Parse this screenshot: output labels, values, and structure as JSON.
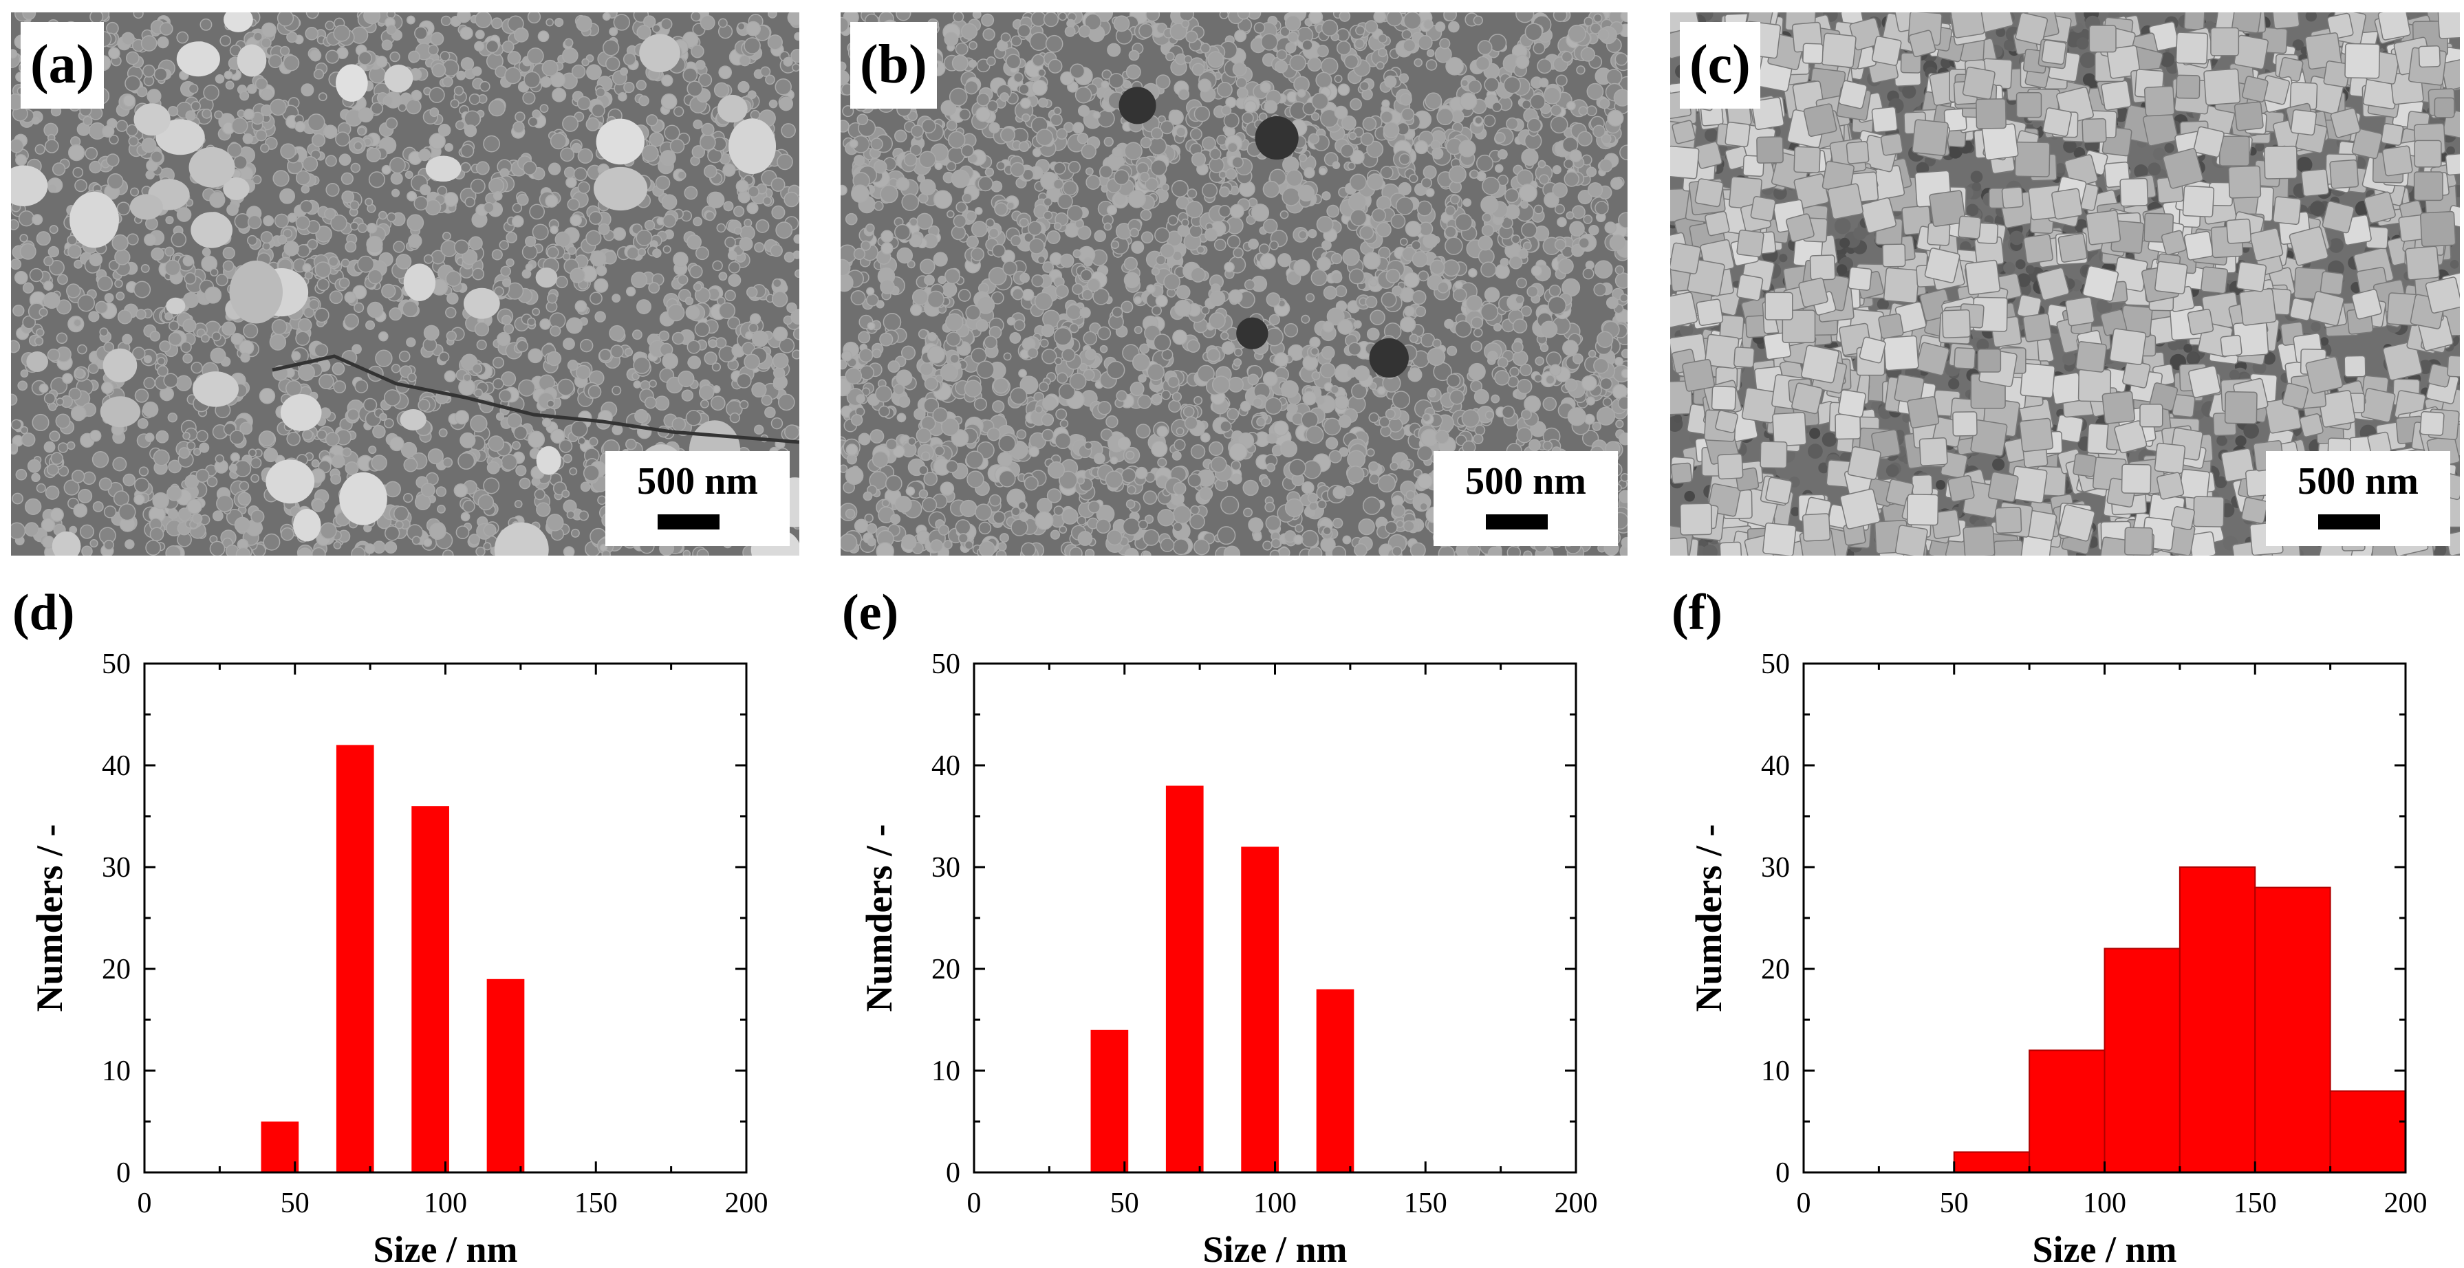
{
  "panels": [
    {
      "label": "(a)",
      "scale_text": "500 nm",
      "particle": "round"
    },
    {
      "label": "(b)",
      "scale_text": "500 nm",
      "particle": "round"
    },
    {
      "label": "(c)",
      "scale_text": "500 nm",
      "particle": "cube"
    }
  ],
  "colors": {
    "bar": "#ff0000",
    "bar_edge": "#b00000",
    "sem_background": "#6f6f6f"
  },
  "chart_data": [
    {
      "type": "bar",
      "label": "(d)",
      "title": "",
      "xlabel": "Size / nm",
      "ylabel": "Numders / -",
      "xlim": [
        0,
        200
      ],
      "ylim": [
        0,
        50
      ],
      "xticks": [
        0,
        50,
        100,
        150,
        200
      ],
      "yticks": [
        0,
        10,
        20,
        30,
        40,
        50
      ],
      "bars": [
        {
          "center": 45,
          "width": 12.5,
          "value": 5
        },
        {
          "center": 70,
          "width": 12.5,
          "value": 42
        },
        {
          "center": 95,
          "width": 12.5,
          "value": 36
        },
        {
          "center": 120,
          "width": 12.5,
          "value": 19
        }
      ]
    },
    {
      "type": "bar",
      "label": "(e)",
      "title": "",
      "xlabel": "Size / nm",
      "ylabel": "Numders / -",
      "xlim": [
        0,
        200
      ],
      "ylim": [
        0,
        50
      ],
      "xticks": [
        0,
        50,
        100,
        150,
        200
      ],
      "yticks": [
        0,
        10,
        20,
        30,
        40,
        50
      ],
      "bars": [
        {
          "center": 45,
          "width": 12.5,
          "value": 14
        },
        {
          "center": 70,
          "width": 12.5,
          "value": 38
        },
        {
          "center": 95,
          "width": 12.5,
          "value": 32
        },
        {
          "center": 120,
          "width": 12.5,
          "value": 18
        }
      ]
    },
    {
      "type": "bar",
      "label": "(f)",
      "title": "",
      "xlabel": "Size / nm",
      "ylabel": "Numders / -",
      "xlim": [
        0,
        200
      ],
      "ylim": [
        0,
        50
      ],
      "xticks": [
        0,
        50,
        100,
        150,
        200
      ],
      "yticks": [
        0,
        10,
        20,
        30,
        40,
        50
      ],
      "bars": [
        {
          "center": 62.5,
          "width": 25,
          "value": 2
        },
        {
          "center": 87.5,
          "width": 25,
          "value": 12
        },
        {
          "center": 112.5,
          "width": 25,
          "value": 22
        },
        {
          "center": 137.5,
          "width": 25,
          "value": 30
        },
        {
          "center": 162.5,
          "width": 25,
          "value": 28
        },
        {
          "center": 187.5,
          "width": 25,
          "value": 8
        }
      ]
    }
  ]
}
